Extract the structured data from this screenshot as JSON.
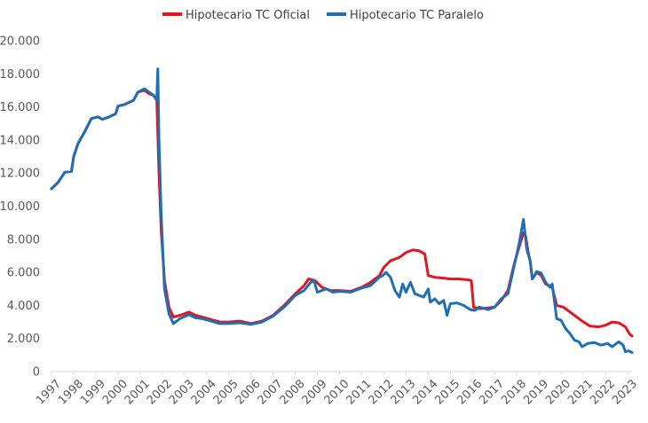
{
  "chart_data": {
    "type": "line",
    "title": "",
    "xlabel": "",
    "ylabel": "",
    "ylim": [
      0,
      20000
    ],
    "xlim": [
      1997,
      2023.2
    ],
    "yticks": [
      "0",
      "2.000",
      "4.000",
      "6.000",
      "8.000",
      "10.000",
      "12.000",
      "14.000",
      "16.000",
      "18.000",
      "20.000"
    ],
    "xticks": [
      "1997",
      "1998",
      "1999",
      "2000",
      "2001",
      "2002",
      "2003",
      "2004",
      "2005",
      "2006",
      "2007",
      "2008",
      "2009",
      "2010",
      "2011",
      "2012",
      "2013",
      "2014",
      "2015",
      "2016",
      "2017",
      "2018",
      "2019",
      "2020",
      "2021",
      "2022",
      "2023"
    ],
    "grid": false,
    "legend_position": "top",
    "series": [
      {
        "name": "Hipotecario TC Oficial",
        "color": "#e3151f",
        "points": [
          [
            1997.0,
            11050
          ],
          [
            1997.3,
            11450
          ],
          [
            1997.6,
            12050
          ],
          [
            1997.9,
            12100
          ],
          [
            1998.0,
            13000
          ],
          [
            1998.2,
            13800
          ],
          [
            1998.5,
            14500
          ],
          [
            1998.8,
            15300
          ],
          [
            1999.1,
            15400
          ],
          [
            1999.3,
            15250
          ],
          [
            1999.6,
            15400
          ],
          [
            1999.9,
            15600
          ],
          [
            2000.0,
            16050
          ],
          [
            2000.3,
            16150
          ],
          [
            2000.7,
            16400
          ],
          [
            2000.9,
            16900
          ],
          [
            2001.2,
            17000
          ],
          [
            2001.4,
            16800
          ],
          [
            2001.6,
            16700
          ],
          [
            2001.75,
            16500
          ],
          [
            2001.85,
            12000
          ],
          [
            2001.95,
            8500
          ],
          [
            2002.1,
            5500
          ],
          [
            2002.3,
            3900
          ],
          [
            2002.5,
            3300
          ],
          [
            2002.8,
            3400
          ],
          [
            2003.2,
            3600
          ],
          [
            2003.5,
            3400
          ],
          [
            2003.8,
            3300
          ],
          [
            2004.2,
            3150
          ],
          [
            2004.6,
            3000
          ],
          [
            2005.0,
            3000
          ],
          [
            2005.5,
            3050
          ],
          [
            2006.0,
            2900
          ],
          [
            2006.5,
            3050
          ],
          [
            2007.0,
            3400
          ],
          [
            2007.5,
            4000
          ],
          [
            2008.0,
            4700
          ],
          [
            2008.4,
            5200
          ],
          [
            2008.6,
            5600
          ],
          [
            2008.9,
            5500
          ],
          [
            2009.2,
            5100
          ],
          [
            2009.6,
            4900
          ],
          [
            2010.0,
            4900
          ],
          [
            2010.5,
            4850
          ],
          [
            2011.0,
            5100
          ],
          [
            2011.4,
            5400
          ],
          [
            2011.8,
            5800
          ],
          [
            2012.0,
            6300
          ],
          [
            2012.3,
            6700
          ],
          [
            2012.7,
            6900
          ],
          [
            2013.0,
            7200
          ],
          [
            2013.3,
            7350
          ],
          [
            2013.6,
            7300
          ],
          [
            2013.85,
            7100
          ],
          [
            2014.0,
            5800
          ],
          [
            2014.3,
            5700
          ],
          [
            2014.7,
            5650
          ],
          [
            2015.0,
            5600
          ],
          [
            2015.4,
            5600
          ],
          [
            2015.8,
            5550
          ],
          [
            2015.95,
            5500
          ],
          [
            2016.05,
            3900
          ],
          [
            2016.3,
            3800
          ],
          [
            2016.7,
            3850
          ],
          [
            2017.0,
            3900
          ],
          [
            2017.3,
            4300
          ],
          [
            2017.6,
            4900
          ],
          [
            2017.9,
            6600
          ],
          [
            2018.1,
            7500
          ],
          [
            2018.3,
            8400
          ],
          [
            2018.4,
            8200
          ],
          [
            2018.5,
            7300
          ],
          [
            2018.6,
            6700
          ],
          [
            2018.7,
            5600
          ],
          [
            2018.9,
            6000
          ],
          [
            2019.1,
            5800
          ],
          [
            2019.3,
            5300
          ],
          [
            2019.6,
            5100
          ],
          [
            2019.8,
            4000
          ],
          [
            2020.1,
            3900
          ],
          [
            2020.5,
            3500
          ],
          [
            2020.9,
            3100
          ],
          [
            2021.3,
            2750
          ],
          [
            2021.7,
            2700
          ],
          [
            2022.0,
            2800
          ],
          [
            2022.3,
            3000
          ],
          [
            2022.6,
            2950
          ],
          [
            2022.9,
            2700
          ],
          [
            2023.1,
            2250
          ],
          [
            2023.2,
            2150
          ]
        ]
      },
      {
        "name": "Hipotecario TC Paralelo",
        "color": "#1f6fb6",
        "points": [
          [
            1997.0,
            11050
          ],
          [
            1997.3,
            11450
          ],
          [
            1997.6,
            12050
          ],
          [
            1997.9,
            12100
          ],
          [
            1998.0,
            13000
          ],
          [
            1998.2,
            13800
          ],
          [
            1998.5,
            14500
          ],
          [
            1998.8,
            15300
          ],
          [
            1999.1,
            15400
          ],
          [
            1999.3,
            15250
          ],
          [
            1999.6,
            15400
          ],
          [
            1999.9,
            15600
          ],
          [
            2000.0,
            16050
          ],
          [
            2000.3,
            16150
          ],
          [
            2000.7,
            16400
          ],
          [
            2000.9,
            16900
          ],
          [
            2001.2,
            17100
          ],
          [
            2001.4,
            16900
          ],
          [
            2001.6,
            16700
          ],
          [
            2001.75,
            16400
          ],
          [
            2001.8,
            18300
          ],
          [
            2001.85,
            14000
          ],
          [
            2001.95,
            9500
          ],
          [
            2002.1,
            5000
          ],
          [
            2002.3,
            3500
          ],
          [
            2002.5,
            2900
          ],
          [
            2002.8,
            3200
          ],
          [
            2003.2,
            3450
          ],
          [
            2003.5,
            3250
          ],
          [
            2003.8,
            3200
          ],
          [
            2004.2,
            3050
          ],
          [
            2004.6,
            2900
          ],
          [
            2005.0,
            2900
          ],
          [
            2005.5,
            2950
          ],
          [
            2006.0,
            2850
          ],
          [
            2006.5,
            3000
          ],
          [
            2007.0,
            3350
          ],
          [
            2007.5,
            3900
          ],
          [
            2008.0,
            4600
          ],
          [
            2008.4,
            4900
          ],
          [
            2008.7,
            5400
          ],
          [
            2008.85,
            5500
          ],
          [
            2009.0,
            4800
          ],
          [
            2009.4,
            5000
          ],
          [
            2009.7,
            4800
          ],
          [
            2010.0,
            4850
          ],
          [
            2010.5,
            4800
          ],
          [
            2011.0,
            5050
          ],
          [
            2011.4,
            5200
          ],
          [
            2011.8,
            5700
          ],
          [
            2011.95,
            5800
          ],
          [
            2012.1,
            6000
          ],
          [
            2012.3,
            5700
          ],
          [
            2012.5,
            4900
          ],
          [
            2012.7,
            4500
          ],
          [
            2012.85,
            5300
          ],
          [
            2013.0,
            4800
          ],
          [
            2013.2,
            5400
          ],
          [
            2013.4,
            4700
          ],
          [
            2013.6,
            4600
          ],
          [
            2013.8,
            4500
          ],
          [
            2014.0,
            5000
          ],
          [
            2014.1,
            4200
          ],
          [
            2014.3,
            4400
          ],
          [
            2014.5,
            4100
          ],
          [
            2014.7,
            4300
          ],
          [
            2014.85,
            3400
          ],
          [
            2015.0,
            4100
          ],
          [
            2015.3,
            4150
          ],
          [
            2015.6,
            4000
          ],
          [
            2015.9,
            3750
          ],
          [
            2016.1,
            3700
          ],
          [
            2016.3,
            3900
          ],
          [
            2016.7,
            3750
          ],
          [
            2017.0,
            3900
          ],
          [
            2017.3,
            4400
          ],
          [
            2017.6,
            4700
          ],
          [
            2017.9,
            6500
          ],
          [
            2018.1,
            7700
          ],
          [
            2018.3,
            9200
          ],
          [
            2018.45,
            7400
          ],
          [
            2018.6,
            6700
          ],
          [
            2018.7,
            5600
          ],
          [
            2018.9,
            6050
          ],
          [
            2019.1,
            5950
          ],
          [
            2019.3,
            5400
          ],
          [
            2019.5,
            5100
          ],
          [
            2019.6,
            5300
          ],
          [
            2019.8,
            3200
          ],
          [
            2020.0,
            3100
          ],
          [
            2020.2,
            2600
          ],
          [
            2020.4,
            2300
          ],
          [
            2020.6,
            1900
          ],
          [
            2020.8,
            1800
          ],
          [
            2020.95,
            1500
          ],
          [
            2021.2,
            1700
          ],
          [
            2021.5,
            1750
          ],
          [
            2021.8,
            1600
          ],
          [
            2022.1,
            1700
          ],
          [
            2022.3,
            1500
          ],
          [
            2022.6,
            1800
          ],
          [
            2022.8,
            1600
          ],
          [
            2022.9,
            1200
          ],
          [
            2023.05,
            1250
          ],
          [
            2023.2,
            1150
          ]
        ]
      }
    ]
  }
}
